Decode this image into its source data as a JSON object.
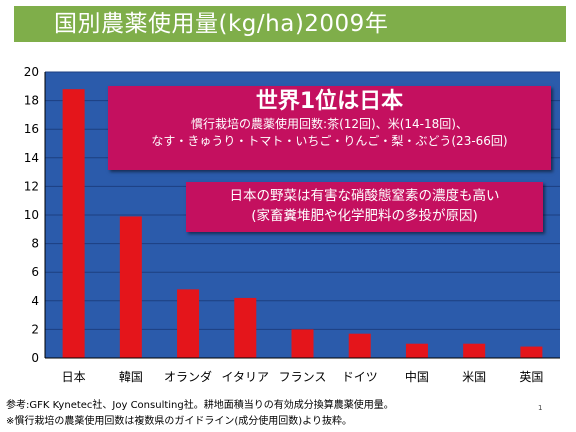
{
  "slide": {
    "title": "国別農薬使用量(kg/ha)2009年",
    "page_number": "1"
  },
  "callout_main": {
    "headline": "世界1位は日本",
    "line1": "慣行栽培の農薬使用回数:茶(12回)、米(14-18回)、",
    "line2": "なす・きゅうり・トマト・いちご・りんご・梨・ぶどう(23-66回)"
  },
  "callout_secondary": {
    "line1": "日本の野菜は有害な硝酸態窒素の濃度も高い",
    "line2": "(家畜糞堆肥や化学肥料の多投が原因)"
  },
  "footnotes": {
    "line1": "参考:GFK Kynetec社、Joy Consulting社。耕地面積当りの有効成分換算農薬使用量。",
    "line2": "※慣行栽培の農薬使用回数は複数県のガイドライン(成分使用回数)より抜粋。"
  },
  "colors": {
    "plot_background": "#2b5bab",
    "bar_fill": "#e4151b",
    "title_band": "#7fae4a",
    "callout": "#c4105f"
  },
  "chart_data": {
    "type": "bar",
    "title": "国別農薬使用量(kg/ha)2009年",
    "xlabel": "",
    "ylabel": "",
    "categories": [
      "日本",
      "韓国",
      "オランダ",
      "イタリア",
      "フランス",
      "ドイツ",
      "中国",
      "米国",
      "英国"
    ],
    "values": [
      18.8,
      9.9,
      4.8,
      4.2,
      2.0,
      1.7,
      1.0,
      1.0,
      0.8
    ],
    "ylim": [
      0,
      20
    ],
    "yticks": [
      "0",
      "2",
      "4",
      "6",
      "8",
      "10",
      "12",
      "14",
      "16",
      "18",
      "20"
    ],
    "grid": true,
    "legend": "none"
  }
}
